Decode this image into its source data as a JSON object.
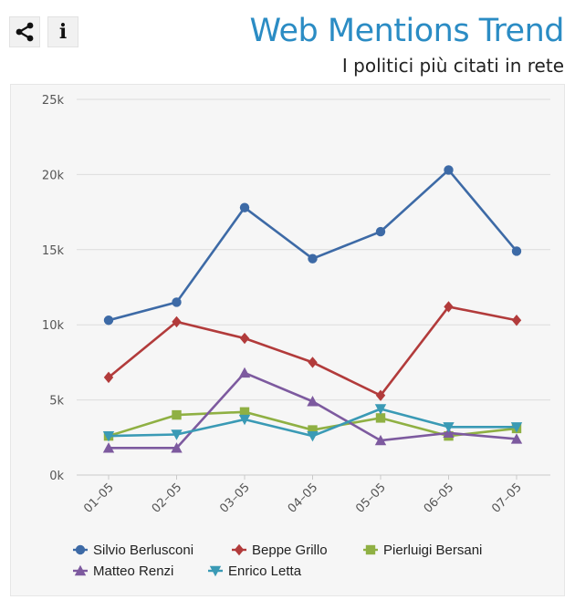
{
  "toolbar": {
    "share_icon": "share-icon",
    "info_icon": "info-icon",
    "info_glyph": "i"
  },
  "header": {
    "title": "Web Mentions Trend",
    "subtitle": "I politici più citati in rete"
  },
  "chart_data": {
    "type": "line",
    "categories": [
      "01–05",
      "02–05",
      "03–05",
      "04–05",
      "05–05",
      "06–05",
      "07–05"
    ],
    "ylim": [
      0,
      25000
    ],
    "yticks": [
      "0k",
      "5k",
      "10k",
      "15k",
      "20k",
      "25k"
    ],
    "grid": true,
    "legend_position": "bottom",
    "series": [
      {
        "name": "Silvio Berlusconi",
        "color": "#3d6aa6",
        "marker": "circle",
        "values": [
          10300,
          11500,
          17800,
          14400,
          16200,
          20300,
          14900
        ]
      },
      {
        "name": "Beppe Grillo",
        "color": "#b23b3b",
        "marker": "diamond",
        "values": [
          6500,
          10200,
          9100,
          7500,
          5300,
          11200,
          10300
        ]
      },
      {
        "name": "Pierluigi Bersani",
        "color": "#8fb043",
        "marker": "square",
        "values": [
          2600,
          4000,
          4200,
          3000,
          3800,
          2600,
          3100
        ]
      },
      {
        "name": "Matteo Renzi",
        "color": "#7d5a9f",
        "marker": "triangle",
        "values": [
          1800,
          1800,
          6800,
          4900,
          2300,
          2800,
          2400
        ]
      },
      {
        "name": "Enrico Letta",
        "color": "#3a9ab5",
        "marker": "triangle-down",
        "values": [
          2600,
          2700,
          3700,
          2600,
          4400,
          3200,
          3200
        ]
      }
    ]
  }
}
